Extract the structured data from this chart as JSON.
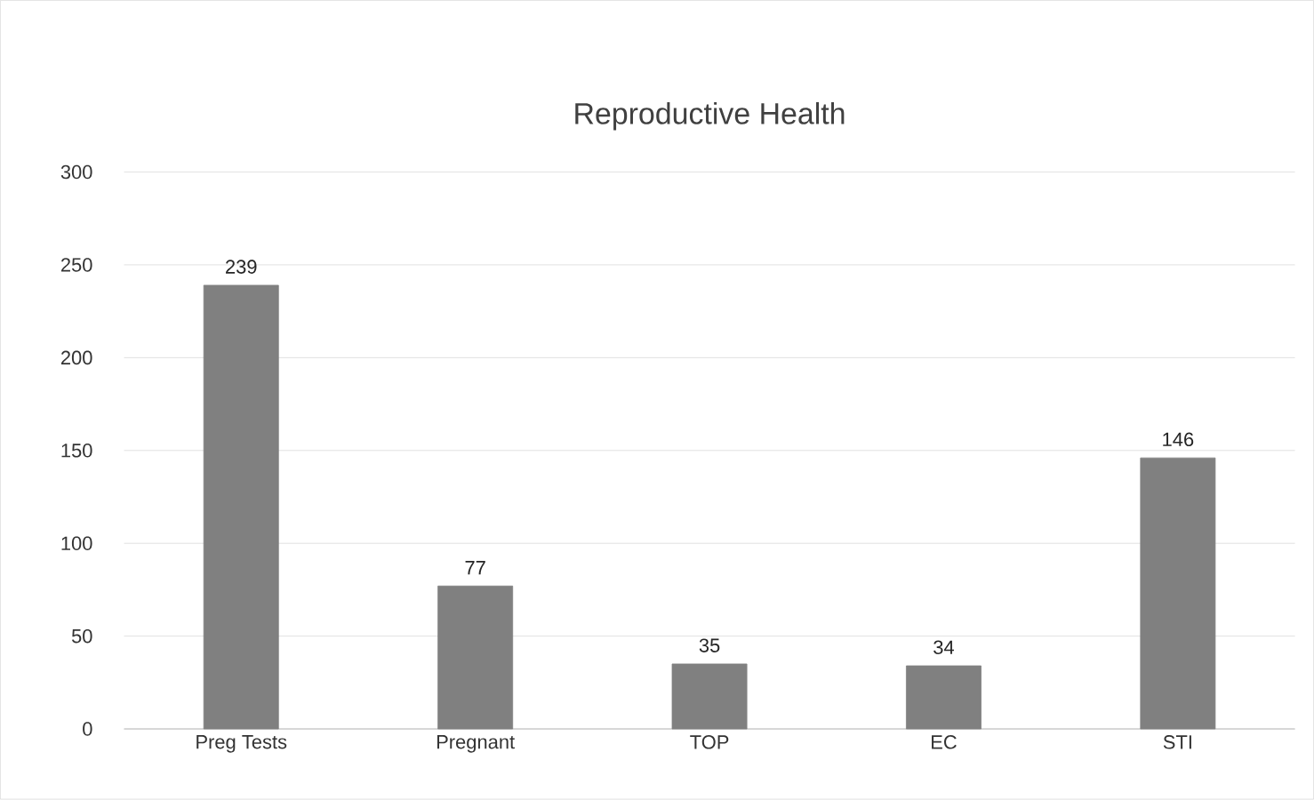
{
  "chart_data": {
    "type": "bar",
    "title": "Reproductive Health",
    "categories": [
      "Preg Tests",
      "Pregnant",
      "TOP",
      "EC",
      "STI"
    ],
    "values": [
      239,
      77,
      35,
      34,
      146
    ],
    "color": "#808080",
    "ylim": [
      0,
      300
    ],
    "yticks": [
      0,
      50,
      100,
      150,
      200,
      250,
      300
    ],
    "grid": "y",
    "data_labels": true
  }
}
